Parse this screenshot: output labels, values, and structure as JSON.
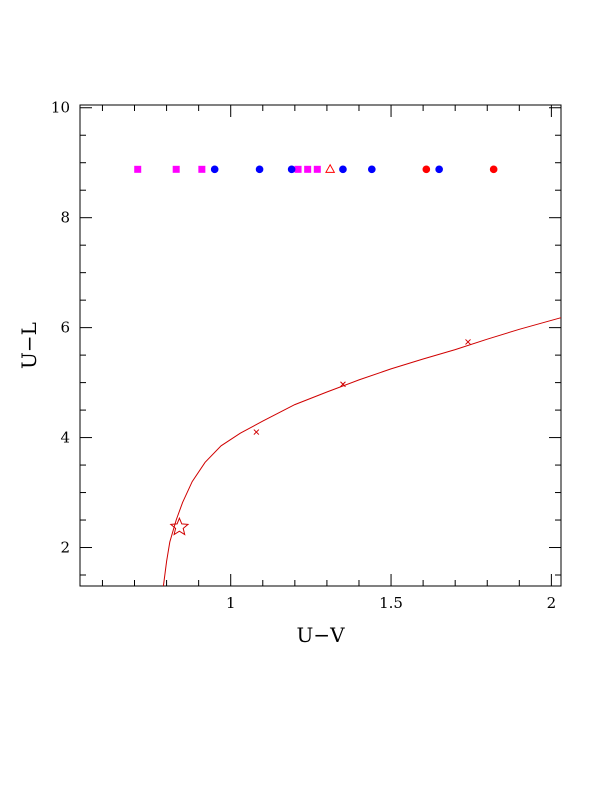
{
  "chart_data": {
    "type": "scatter",
    "title": "",
    "xlabel": "U−V",
    "ylabel": "U−L",
    "xlim": [
      0.53,
      2.03
    ],
    "ylim": [
      1.3,
      10.05
    ],
    "x_major_ticks": [
      1,
      1.5,
      2
    ],
    "x_tick_labels": [
      "1",
      "1.5",
      "2"
    ],
    "y_major_ticks": [
      2,
      4,
      6,
      8,
      10
    ],
    "y_tick_labels": [
      "2",
      "4",
      "6",
      "8",
      "10"
    ],
    "x_minor_step": 0.1,
    "y_minor_step": 0.5,
    "grid": false,
    "colors": {
      "magenta": "#ff00ff",
      "blue": "#0000ff",
      "red": "#ff0000",
      "curve": "#d00000",
      "axis": "#000000"
    },
    "series": [
      {
        "marker": "square",
        "color": "#ff00ff",
        "x": [
          0.71,
          0.83,
          0.91,
          1.21,
          1.24,
          1.27
        ],
        "y": [
          8.88,
          8.88,
          8.88,
          8.88,
          8.88,
          8.88
        ]
      },
      {
        "marker": "circle",
        "color": "#0000ff",
        "x": [
          0.95,
          1.09,
          1.19,
          1.35,
          1.44,
          1.65
        ],
        "y": [
          8.88,
          8.88,
          8.88,
          8.88,
          8.88,
          8.88
        ]
      },
      {
        "marker": "circle",
        "color": "#ff0000",
        "x": [
          1.61,
          1.82
        ],
        "y": [
          8.88,
          8.88
        ]
      },
      {
        "marker": "triangle-open",
        "color": "#ff0000",
        "x": [
          1.31
        ],
        "y": [
          8.88
        ]
      }
    ],
    "curve": {
      "color": "#d00000",
      "x": [
        0.79,
        0.8,
        0.81,
        0.83,
        0.85,
        0.88,
        0.92,
        0.97,
        1.03,
        1.1,
        1.2,
        1.3,
        1.4,
        1.5,
        1.6,
        1.7,
        1.8,
        1.9,
        2.03
      ],
      "y": [
        1.3,
        1.75,
        2.1,
        2.5,
        2.82,
        3.2,
        3.55,
        3.85,
        4.08,
        4.3,
        4.6,
        4.83,
        5.05,
        5.25,
        5.43,
        5.6,
        5.79,
        5.97,
        6.18
      ]
    },
    "curve_markers": {
      "marker": "x",
      "x": [
        1.08,
        1.35,
        1.74
      ],
      "y": [
        4.1,
        4.97,
        5.74
      ]
    },
    "star": {
      "marker": "star-open",
      "x": [
        0.84
      ],
      "y": [
        2.37
      ]
    }
  }
}
